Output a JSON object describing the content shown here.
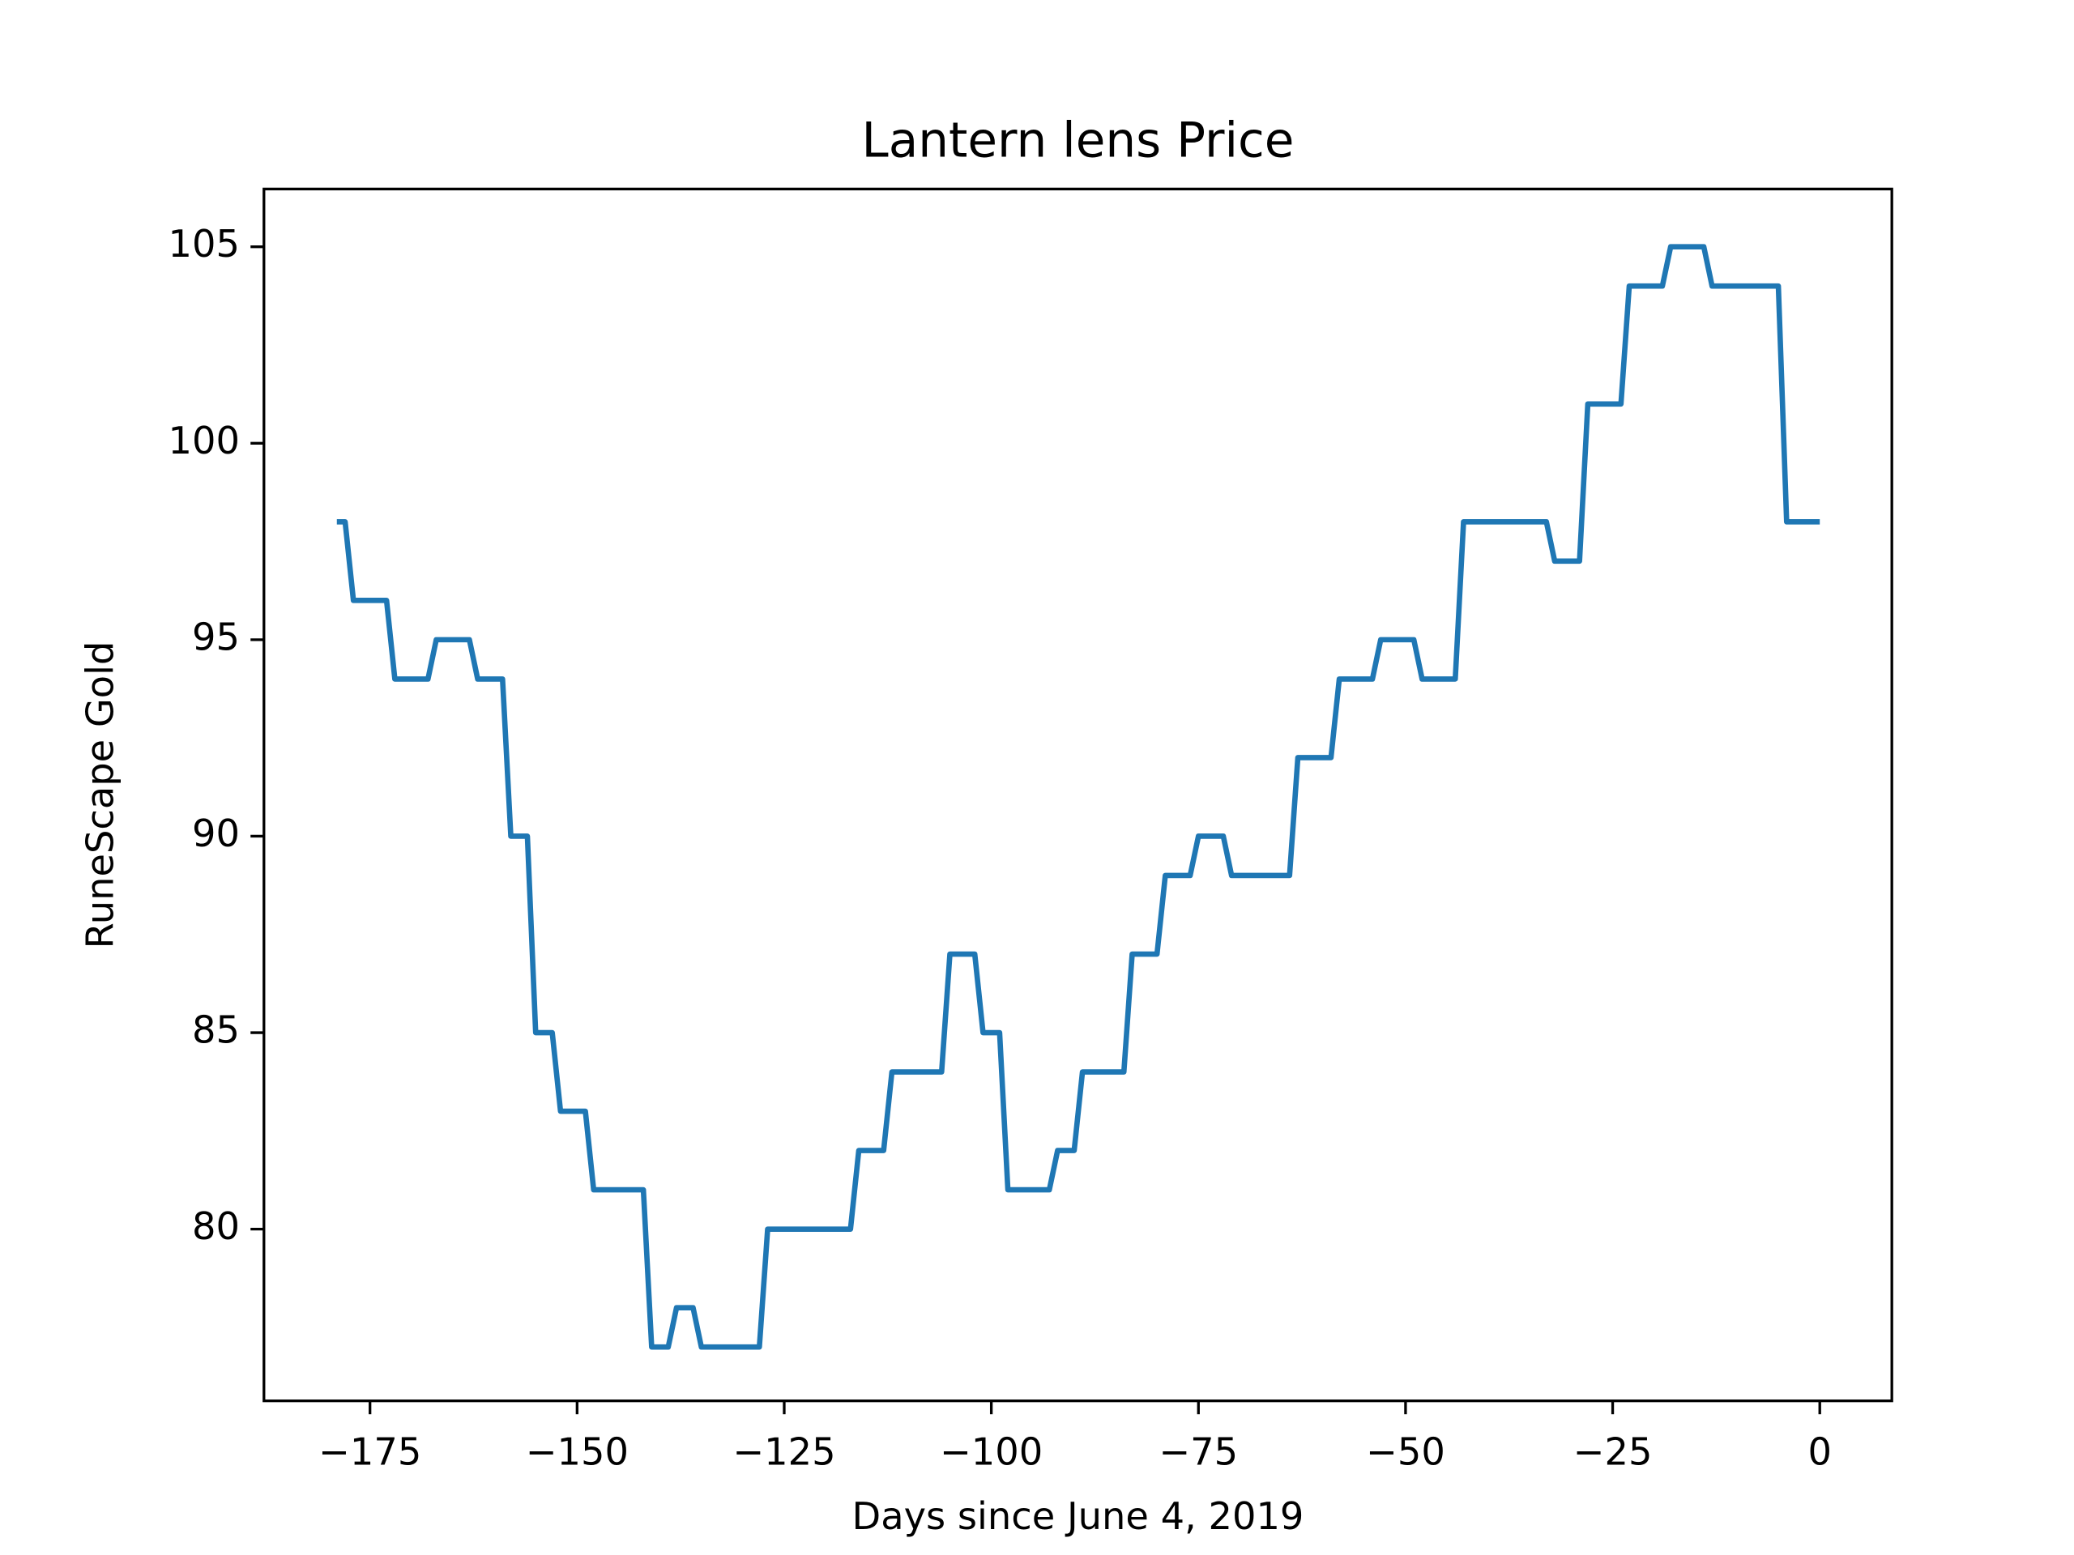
{
  "chart_data": {
    "type": "line",
    "title": "Lantern lens Price",
    "xlabel": "Days since June 4, 2019",
    "ylabel": "RuneScape Gold",
    "x": [
      -179,
      -178,
      -177,
      -176,
      -175,
      -174,
      -173,
      -172,
      -171,
      -170,
      -169,
      -168,
      -167,
      -166,
      -165,
      -164,
      -163,
      -162,
      -161,
      -160,
      -159,
      -158,
      -157,
      -156,
      -155,
      -154,
      -153,
      -152,
      -151,
      -150,
      -149,
      -148,
      -147,
      -146,
      -145,
      -144,
      -143,
      -142,
      -141,
      -140,
      -139,
      -138,
      -137,
      -136,
      -135,
      -134,
      -133,
      -132,
      -131,
      -130,
      -129,
      -128,
      -127,
      -126,
      -125,
      -124,
      -123,
      -122,
      -121,
      -120,
      -119,
      -118,
      -117,
      -116,
      -115,
      -114,
      -113,
      -112,
      -111,
      -110,
      -109,
      -108,
      -107,
      -106,
      -105,
      -104,
      -103,
      -102,
      -101,
      -100,
      -99,
      -98,
      -97,
      -96,
      -95,
      -94,
      -93,
      -92,
      -91,
      -90,
      -89,
      -88,
      -87,
      -86,
      -85,
      -84,
      -83,
      -82,
      -81,
      -80,
      -79,
      -78,
      -77,
      -76,
      -75,
      -74,
      -73,
      -72,
      -71,
      -70,
      -69,
      -68,
      -67,
      -66,
      -65,
      -64,
      -63,
      -62,
      -61,
      -60,
      -59,
      -58,
      -57,
      -56,
      -55,
      -54,
      -53,
      -52,
      -51,
      -50,
      -49,
      -48,
      -47,
      -46,
      -45,
      -44,
      -43,
      -42,
      -41,
      -40,
      -39,
      -38,
      -37,
      -36,
      -35,
      -34,
      -33,
      -32,
      -31,
      -30,
      -29,
      -28,
      -27,
      -26,
      -25,
      -24,
      -23,
      -22,
      -21,
      -20,
      -19,
      -18,
      -17,
      -16,
      -15,
      -14,
      -13,
      -12,
      -11,
      -10,
      -9,
      -8,
      -7,
      -6,
      -5,
      -4,
      -3,
      -2,
      -1,
      0
    ],
    "series": [
      {
        "name": "Price",
        "color": "#1f77b4",
        "values": [
          98,
          98,
          96,
          96,
          96,
          96,
          96,
          94,
          94,
          94,
          94,
          94,
          95,
          95,
          95,
          95,
          95,
          94,
          94,
          94,
          94,
          90,
          90,
          90,
          85,
          85,
          85,
          83,
          83,
          83,
          83,
          81,
          81,
          81,
          81,
          81,
          81,
          81,
          77,
          77,
          77,
          78,
          78,
          78,
          77,
          77,
          77,
          77,
          77,
          77,
          77,
          77,
          80,
          80,
          80,
          80,
          80,
          80,
          80,
          80,
          80,
          80,
          80,
          82,
          82,
          82,
          82,
          84,
          84,
          84,
          84,
          84,
          84,
          84,
          87,
          87,
          87,
          87,
          85,
          85,
          85,
          81,
          81,
          81,
          81,
          81,
          81,
          82,
          82,
          82,
          84,
          84,
          84,
          84,
          84,
          84,
          87,
          87,
          87,
          87,
          89,
          89,
          89,
          89,
          90,
          90,
          90,
          90,
          89,
          89,
          89,
          89,
          89,
          89,
          89,
          89,
          92,
          92,
          92,
          92,
          92,
          94,
          94,
          94,
          94,
          94,
          95,
          95,
          95,
          95,
          95,
          94,
          94,
          94,
          94,
          94,
          98,
          98,
          98,
          98,
          98,
          98,
          98,
          98,
          98,
          98,
          98,
          97,
          97,
          97,
          97,
          101,
          101,
          101,
          101,
          101,
          104,
          104,
          104,
          104,
          104,
          105,
          105,
          105,
          105,
          105,
          104,
          104,
          104,
          104,
          104,
          104,
          104,
          104,
          104,
          98,
          98,
          98,
          98,
          98
        ]
      }
    ],
    "xlim": [
      -187.8,
      8.7
    ],
    "ylim": [
      75.63,
      106.47
    ],
    "xticks": [
      {
        "value": -175,
        "label": "−175"
      },
      {
        "value": -150,
        "label": "−150"
      },
      {
        "value": -125,
        "label": "−125"
      },
      {
        "value": -100,
        "label": "−100"
      },
      {
        "value": -75,
        "label": "−75"
      },
      {
        "value": -50,
        "label": "−50"
      },
      {
        "value": -25,
        "label": "−25"
      },
      0
    ],
    "yticks": [
      80,
      85,
      90,
      95,
      100,
      105
    ],
    "grid": false
  }
}
